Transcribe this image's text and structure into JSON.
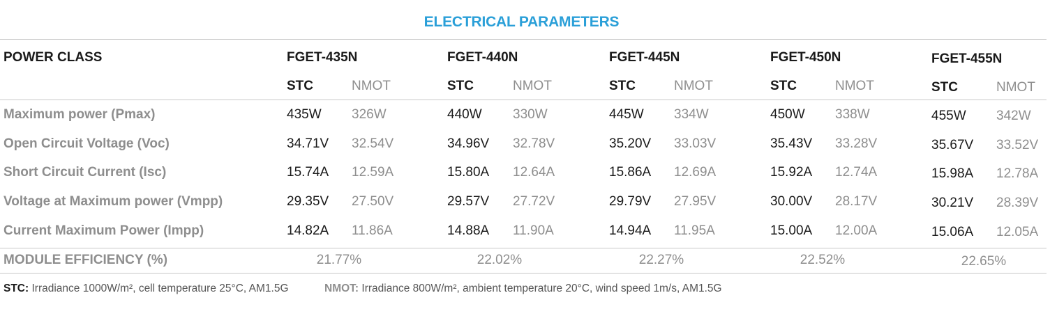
{
  "title": "ELECTRICAL PARAMETERS",
  "power_class_label": "POWER CLASS",
  "models": [
    {
      "name": "FGET-435N",
      "stc": "STC",
      "nmot": "NMOT",
      "values": [
        [
          "435W",
          "326W"
        ],
        [
          "34.71V",
          "32.54V"
        ],
        [
          "15.74A",
          "12.59A"
        ],
        [
          "29.35V",
          "27.50V"
        ],
        [
          "14.82A",
          "11.86A"
        ]
      ],
      "efficiency": "21.77%"
    },
    {
      "name": "FGET-440N",
      "stc": "STC",
      "nmot": "NMOT",
      "values": [
        [
          "440W",
          "330W"
        ],
        [
          "34.96V",
          "32.78V"
        ],
        [
          "15.80A",
          "12.64A"
        ],
        [
          "29.57V",
          "27.72V"
        ],
        [
          "14.88A",
          "11.90A"
        ]
      ],
      "efficiency": "22.02%"
    },
    {
      "name": "FGET-445N",
      "stc": "STC",
      "nmot": "NMOT",
      "values": [
        [
          "445W",
          "334W"
        ],
        [
          "35.20V",
          "33.03V"
        ],
        [
          "15.86A",
          "12.69A"
        ],
        [
          "29.79V",
          "27.95V"
        ],
        [
          "14.94A",
          "11.95A"
        ]
      ],
      "efficiency": "22.27%"
    },
    {
      "name": "FGET-450N",
      "stc": "STC",
      "nmot": "NMOT",
      "values": [
        [
          "450W",
          "338W"
        ],
        [
          "35.43V",
          "33.28V"
        ],
        [
          "15.92A",
          "12.74A"
        ],
        [
          "30.00V",
          "28.17V"
        ],
        [
          "15.00A",
          "12.00A"
        ]
      ],
      "efficiency": "22.52%"
    },
    {
      "name": "FGET-455N",
      "stc": "STC",
      "nmot": "NMOT",
      "values": [
        [
          "455W",
          "342W"
        ],
        [
          "35.67V",
          "33.52V"
        ],
        [
          "15.98A",
          "12.78A"
        ],
        [
          "30.21V",
          "28.39V"
        ],
        [
          "15.06A",
          "12.05A"
        ]
      ],
      "efficiency": "22.65%"
    }
  ],
  "rows": [
    "Maximum power (Pmax)",
    "Open Circuit Voltage (Voc)",
    "Short Circuit Current (Isc)",
    "Voltage at Maximum power (Vmpp)",
    "Current Maximum Power (Impp)"
  ],
  "efficiency_label": "MODULE EFFICIENCY (%)",
  "footnotes": {
    "stc_key": "STC:",
    "stc_text": " Irradiance 1000W/m², cell temperature 25°C, AM1.5G",
    "nmot_key": "NMOT:",
    "nmot_text": " Irradiance 800W/m², ambient temperature 20°C, wind speed 1m/s, AM1.5G"
  },
  "colors": {
    "accent": "#2a9fd8",
    "text_dark": "#1a1a1a",
    "text_grey": "#8e8e8e",
    "rule": "#c8c8c8"
  }
}
